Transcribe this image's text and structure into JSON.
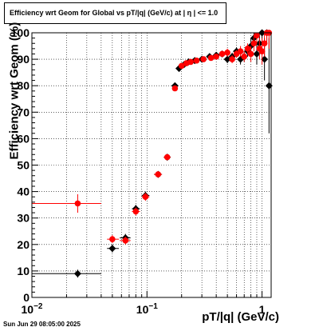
{
  "title": "Efficiency wrt Geom for Global vs pT/|q| (GeV/c) at |  η  | <= 1.0",
  "datestamp": "Sun Jun 29 08:05:00 2025",
  "chart_data": {
    "type": "scatter",
    "xscale": "log",
    "xlim": [
      0.01,
      1.2
    ],
    "ylim": [
      0,
      100
    ],
    "xlabel": "pT/|q| (GeV/c)",
    "ylabel": "Efficiency wrt Geom (%)",
    "grid": true,
    "y_ticks": [
      0,
      10,
      20,
      30,
      40,
      50,
      60,
      70,
      80,
      90,
      100
    ],
    "x_ticks": [
      {
        "value": 0.01,
        "base": "10",
        "exp": "−2"
      },
      {
        "value": 0.1,
        "base": "10",
        "exp": "−1"
      },
      {
        "value": 1,
        "base": "1",
        "exp": ""
      }
    ],
    "series": [
      {
        "color": "#000000",
        "marker": "diamond",
        "points": [
          {
            "x": 0.025,
            "y": 9,
            "xlo": 0.01,
            "xhi": 0.04,
            "yerr": 1.5
          },
          {
            "x": 0.05,
            "y": 18.5,
            "xlo": 0.045,
            "xhi": 0.057,
            "yerr": 1.5
          },
          {
            "x": 0.065,
            "y": 22.5,
            "xlo": 0.058,
            "xhi": 0.072,
            "yerr": 1.5
          },
          {
            "x": 0.08,
            "y": 33.5,
            "xlo": 0.074,
            "xhi": 0.087,
            "yerr": 1.5
          },
          {
            "x": 0.097,
            "y": 38.5,
            "xlo": 0.09,
            "xhi": 0.105,
            "yerr": 1.5
          },
          {
            "x": 0.125,
            "y": 46.5,
            "xlo": 0.115,
            "xhi": 0.135,
            "yerr": 1.0
          },
          {
            "x": 0.15,
            "y": 53,
            "xlo": 0.14,
            "xhi": 0.16,
            "yerr": 1.0
          },
          {
            "x": 0.175,
            "y": 80,
            "xlo": 0.17,
            "xhi": 0.18,
            "yerr": 1.0
          },
          {
            "x": 0.19,
            "y": 86.5,
            "xlo": 0.185,
            "xhi": 0.195,
            "yerr": 1.0
          },
          {
            "x": 0.21,
            "y": 88,
            "yerr": 1.0
          },
          {
            "x": 0.23,
            "y": 89,
            "yerr": 1.0
          },
          {
            "x": 0.26,
            "y": 89.5,
            "yerr": 1.0
          },
          {
            "x": 0.3,
            "y": 90,
            "yerr": 1.0
          },
          {
            "x": 0.35,
            "y": 91,
            "yerr": 1.0
          },
          {
            "x": 0.4,
            "y": 91.5,
            "yerr": 1.0
          },
          {
            "x": 0.45,
            "y": 92,
            "yerr": 1.0
          },
          {
            "x": 0.5,
            "y": 90,
            "yerr": 1.5
          },
          {
            "x": 0.55,
            "y": 91,
            "yerr": 1.5
          },
          {
            "x": 0.6,
            "y": 93,
            "yerr": 1.5
          },
          {
            "x": 0.65,
            "y": 90,
            "yerr": 2.0
          },
          {
            "x": 0.7,
            "y": 91,
            "yerr": 2.0
          },
          {
            "x": 0.75,
            "y": 93,
            "yerr": 2.0
          },
          {
            "x": 0.8,
            "y": 95,
            "yerr": 3.0
          },
          {
            "x": 0.85,
            "y": 98,
            "yerr": 3.0
          },
          {
            "x": 0.9,
            "y": 92,
            "yerr": 4.0
          },
          {
            "x": 0.95,
            "y": 96,
            "yerr": 4.0
          },
          {
            "x": 1.0,
            "y": 100,
            "yerr": 5.0
          },
          {
            "x": 1.05,
            "y": 90,
            "yerr": 8.0
          },
          {
            "x": 1.1,
            "y": 100,
            "yerr": 4.0
          },
          {
            "x": 1.15,
            "y": 80,
            "yerr": 18.0
          }
        ]
      },
      {
        "color": "#ff0000",
        "marker": "circle",
        "points": [
          {
            "x": 0.025,
            "y": 35.5,
            "xlo": 0.01,
            "xhi": 0.04,
            "yerr": 3.5
          },
          {
            "x": 0.05,
            "y": 22,
            "xlo": 0.045,
            "xhi": 0.057,
            "yerr": 1.5
          },
          {
            "x": 0.065,
            "y": 21.5,
            "xlo": 0.058,
            "xhi": 0.072,
            "yerr": 1.5
          },
          {
            "x": 0.08,
            "y": 32.5,
            "xlo": 0.074,
            "xhi": 0.087,
            "yerr": 1.5
          },
          {
            "x": 0.097,
            "y": 38,
            "xlo": 0.09,
            "xhi": 0.105,
            "yerr": 1.5
          },
          {
            "x": 0.125,
            "y": 46.5,
            "xlo": 0.115,
            "xhi": 0.135,
            "yerr": 1.0
          },
          {
            "x": 0.15,
            "y": 53,
            "xlo": 0.14,
            "xhi": 0.16,
            "yerr": 1.0
          },
          {
            "x": 0.175,
            "y": 79,
            "xlo": 0.17,
            "xhi": 0.18,
            "yerr": 1.0
          },
          {
            "x": 0.2,
            "y": 87.5,
            "yerr": 1.0
          },
          {
            "x": 0.22,
            "y": 88.5,
            "yerr": 1.0
          },
          {
            "x": 0.24,
            "y": 89,
            "yerr": 1.0
          },
          {
            "x": 0.27,
            "y": 89.5,
            "yerr": 1.0
          },
          {
            "x": 0.31,
            "y": 90,
            "yerr": 1.0
          },
          {
            "x": 0.36,
            "y": 90.5,
            "yerr": 1.0
          },
          {
            "x": 0.4,
            "y": 91,
            "yerr": 1.0
          },
          {
            "x": 0.45,
            "y": 92,
            "yerr": 1.0
          },
          {
            "x": 0.5,
            "y": 92.5,
            "yerr": 1.5
          },
          {
            "x": 0.55,
            "y": 90,
            "yerr": 1.5
          },
          {
            "x": 0.6,
            "y": 92,
            "yerr": 1.5
          },
          {
            "x": 0.65,
            "y": 93,
            "yerr": 2.0
          },
          {
            "x": 0.7,
            "y": 91,
            "yerr": 2.0
          },
          {
            "x": 0.75,
            "y": 94,
            "yerr": 2.0
          },
          {
            "x": 0.8,
            "y": 92,
            "yerr": 3.0
          },
          {
            "x": 0.85,
            "y": 96,
            "yerr": 3.0
          },
          {
            "x": 0.9,
            "y": 99,
            "yerr": 3.0
          },
          {
            "x": 0.95,
            "y": 94,
            "yerr": 4.0
          },
          {
            "x": 1.0,
            "y": 93,
            "yerr": 5.0
          },
          {
            "x": 1.05,
            "y": 96,
            "yerr": 5.0
          },
          {
            "x": 1.1,
            "y": 100,
            "yerr": 4.0
          },
          {
            "x": 1.15,
            "y": 100,
            "yerr": 6.0
          }
        ]
      }
    ]
  }
}
